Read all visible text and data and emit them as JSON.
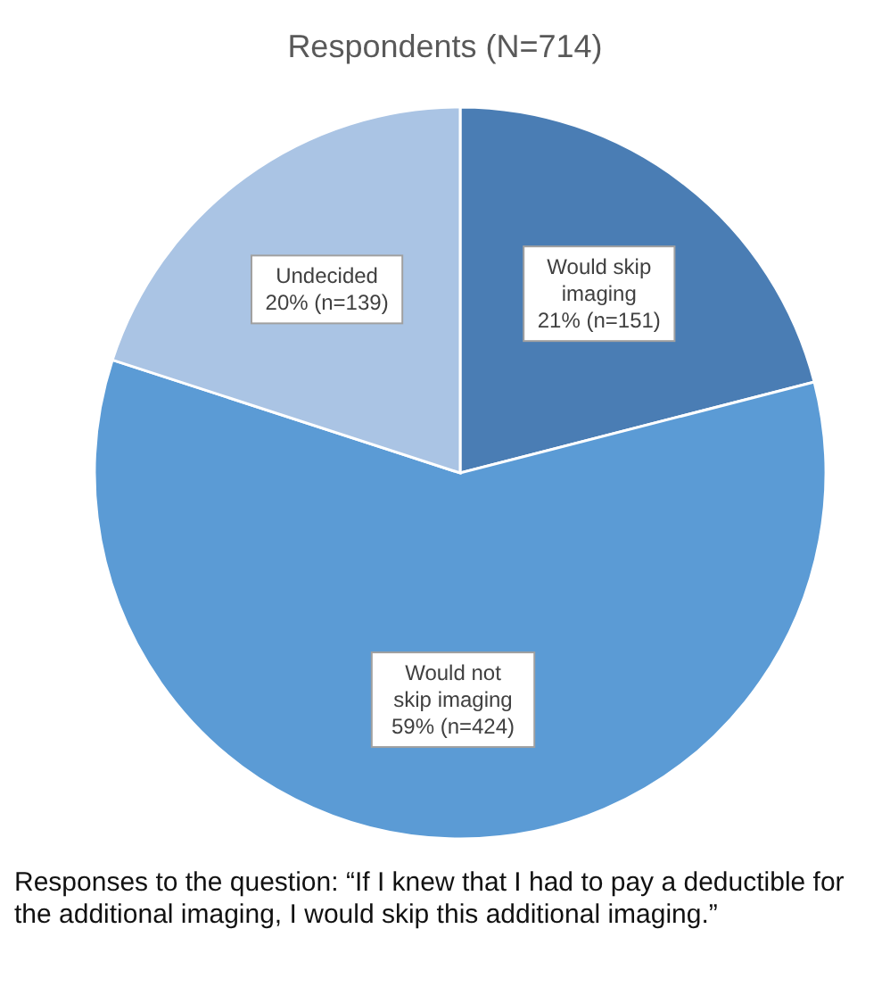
{
  "chart_data": {
    "type": "pie",
    "title": "Respondents (N=714)",
    "categories": [
      "Would skip imaging",
      "Would not skip imaging",
      "Undecided"
    ],
    "values": [
      21,
      59,
      20
    ],
    "value_labels": [
      "21% (n=151)",
      "59% (n=424)",
      "20% (n=139)"
    ],
    "colors": [
      "#4a7db4",
      "#5b9bd5",
      "#aac4e4"
    ],
    "annotations": [
      "Responses to the question: “If I knew that I had to pay a deductible for the additional imaging, I would skip this additional imaging.”"
    ]
  }
}
